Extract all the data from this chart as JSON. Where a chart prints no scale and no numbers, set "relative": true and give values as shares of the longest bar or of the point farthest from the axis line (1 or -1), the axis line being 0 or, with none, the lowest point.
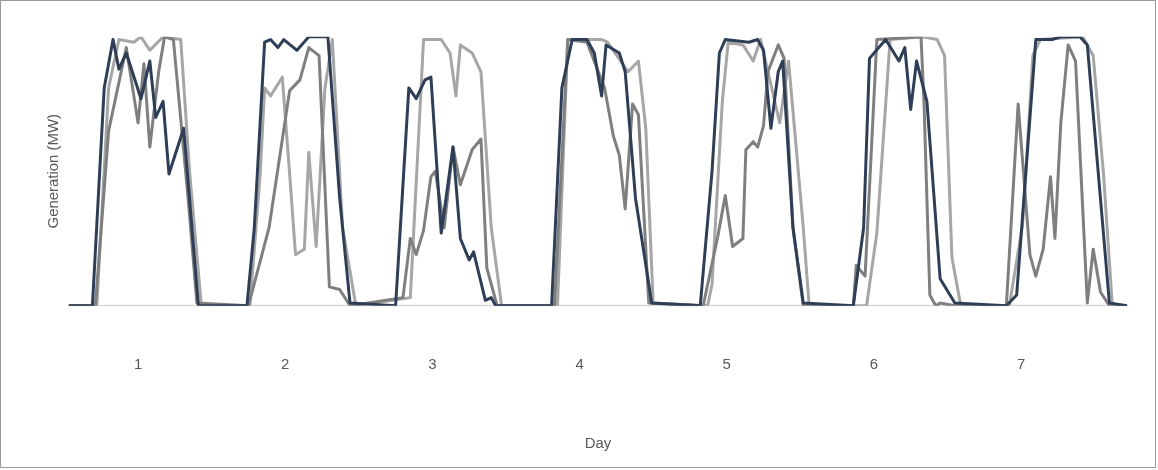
{
  "chart_data": {
    "type": "line",
    "xlabel": "Day",
    "ylabel": "Generation (MW)",
    "relative": true,
    "grid": false,
    "legend": false,
    "marker": "none",
    "line_style": "solid",
    "xlim": [
      0.03,
      7.22
    ],
    "xticks": [
      {
        "value": 0.5,
        "label": "1"
      },
      {
        "value": 1.5,
        "label": "2"
      },
      {
        "value": 2.5,
        "label": "3"
      },
      {
        "value": 3.5,
        "label": "4"
      },
      {
        "value": 4.5,
        "label": "5"
      },
      {
        "value": 5.5,
        "label": "6"
      },
      {
        "value": 6.5,
        "label": "7"
      }
    ],
    "series": [
      {
        "color": "#a6a6a6",
        "x": [
          0.03,
          0.22,
          0.3,
          0.37,
          0.47,
          0.52,
          0.58,
          0.67,
          0.79,
          0.85,
          0.93,
          1.26,
          1.33,
          1.36,
          1.4,
          1.48,
          1.53,
          1.57,
          1.63,
          1.66,
          1.71,
          1.77,
          1.82,
          1.89,
          1.98,
          2.35,
          2.44,
          2.56,
          2.62,
          2.66,
          2.69,
          2.77,
          2.83,
          2.9,
          2.97,
          3.35,
          3.42,
          3.65,
          3.69,
          3.83,
          3.9,
          3.95,
          4.0,
          4.37,
          4.4,
          4.47,
          4.51,
          4.61,
          4.68,
          4.73,
          4.86,
          4.92,
          5.02,
          5.06,
          5.45,
          5.52,
          5.61,
          5.83,
          5.93,
          5.98,
          6.03,
          6.09,
          6.42,
          6.51,
          6.58,
          6.63,
          6.92,
          6.99,
          7.06,
          7.12,
          7.22
        ],
        "values": [
          0,
          0,
          0.81,
          0.99,
          0.98,
          1,
          0.95,
          1,
          0.99,
          0.5,
          0,
          0,
          0.49,
          0.81,
          0.78,
          0.85,
          0.49,
          0.19,
          0.21,
          0.57,
          0.22,
          0.81,
          0.99,
          0.29,
          0,
          0.03,
          0.99,
          0.99,
          0.94,
          0.78,
          0.97,
          0.94,
          0.87,
          0.29,
          0,
          0,
          0.99,
          0.99,
          0.98,
          0.87,
          0.91,
          0.66,
          0.01,
          0,
          0.08,
          0.76,
          0.98,
          0.97,
          0.91,
          0.99,
          0.68,
          0.91,
          0.29,
          0,
          0,
          0.27,
          0.99,
          1,
          0.99,
          0.93,
          0.18,
          0,
          0,
          0.3,
          0.93,
          0.99,
          1,
          0.93,
          0.49,
          0,
          0
        ]
      },
      {
        "color": "#7f7f7f",
        "x": [
          0.03,
          0.21,
          0.3,
          0.42,
          0.5,
          0.54,
          0.58,
          0.64,
          0.68,
          0.74,
          0.84,
          0.9,
          1.25,
          1.39,
          1.53,
          1.6,
          1.66,
          1.73,
          1.8,
          1.87,
          1.94,
          2.3,
          2.35,
          2.39,
          2.44,
          2.49,
          2.52,
          2.58,
          2.64,
          2.69,
          2.77,
          2.83,
          2.87,
          2.94,
          3.33,
          3.42,
          3.55,
          3.67,
          3.73,
          3.77,
          3.81,
          3.86,
          3.9,
          3.97,
          4.34,
          4.44,
          4.49,
          4.54,
          4.61,
          4.63,
          4.68,
          4.71,
          4.75,
          4.78,
          4.85,
          4.89,
          4.95,
          5.02,
          5.36,
          5.38,
          5.44,
          5.52,
          5.82,
          5.84,
          5.88,
          5.92,
          5.95,
          6.05,
          6.4,
          6.48,
          6.56,
          6.6,
          6.65,
          6.7,
          6.73,
          6.77,
          6.82,
          6.87,
          6.95,
          6.99,
          7.04,
          7.1,
          7.22
        ],
        "values": [
          0,
          0,
          0.65,
          0.96,
          0.68,
          0.9,
          0.59,
          0.87,
          1,
          0.99,
          0.4,
          0.01,
          0,
          0.29,
          0.8,
          0.84,
          0.96,
          0.93,
          0.07,
          0.06,
          0,
          0.03,
          0.25,
          0.19,
          0.28,
          0.48,
          0.5,
          0.29,
          0.59,
          0.45,
          0.58,
          0.62,
          0.14,
          0,
          0,
          0.99,
          0.98,
          0.81,
          0.63,
          0.56,
          0.36,
          0.75,
          0.71,
          0.01,
          0,
          0.26,
          0.41,
          0.22,
          0.25,
          0.58,
          0.61,
          0.59,
          0.67,
          0.87,
          0.97,
          0.92,
          0.29,
          0,
          0,
          0.15,
          0.11,
          0.99,
          1,
          0.76,
          0.04,
          0,
          0.01,
          0,
          0,
          0.75,
          0.19,
          0.11,
          0.21,
          0.48,
          0.25,
          0.68,
          0.97,
          0.91,
          0.01,
          0.21,
          0.05,
          0,
          0
        ]
      },
      {
        "color": "#2e3e56",
        "x": [
          0.03,
          0.19,
          0.27,
          0.33,
          0.37,
          0.42,
          0.52,
          0.58,
          0.62,
          0.67,
          0.71,
          0.81,
          0.91,
          1.24,
          1.29,
          1.36,
          1.4,
          1.45,
          1.49,
          1.58,
          1.66,
          1.79,
          1.87,
          1.94,
          2.25,
          2.34,
          2.39,
          2.45,
          2.49,
          2.56,
          2.64,
          2.69,
          2.75,
          2.78,
          2.86,
          2.9,
          2.93,
          3.31,
          3.38,
          3.45,
          3.55,
          3.6,
          3.65,
          3.68,
          3.77,
          3.81,
          3.88,
          3.99,
          4.32,
          4.4,
          4.45,
          4.49,
          4.65,
          4.71,
          4.75,
          4.8,
          4.85,
          4.88,
          4.95,
          5.02,
          5.36,
          5.43,
          5.47,
          5.58,
          5.67,
          5.71,
          5.75,
          5.79,
          5.86,
          5.95,
          6.05,
          6.4,
          6.47,
          6.6,
          6.71,
          6.77,
          6.9,
          6.95,
          7.1,
          7.22
        ],
        "values": [
          0,
          0,
          0.81,
          0.99,
          0.88,
          0.94,
          0.77,
          0.91,
          0.7,
          0.76,
          0.49,
          0.66,
          0,
          0,
          0.29,
          0.98,
          0.99,
          0.96,
          0.99,
          0.95,
          1,
          1,
          0.4,
          0.01,
          0,
          0.81,
          0.77,
          0.84,
          0.85,
          0.27,
          0.59,
          0.25,
          0.17,
          0.2,
          0.02,
          0.03,
          0,
          0,
          0.81,
          0.99,
          0.99,
          0.94,
          0.78,
          0.97,
          0.94,
          0.87,
          0.4,
          0.01,
          0,
          0.5,
          0.94,
          0.99,
          0.98,
          0.99,
          0.95,
          0.66,
          0.87,
          0.91,
          0.29,
          0.01,
          0,
          0.29,
          0.92,
          0.99,
          0.91,
          0.96,
          0.73,
          0.91,
          0.76,
          0.1,
          0.01,
          0,
          0.04,
          0.99,
          0.99,
          1,
          1,
          0.97,
          0.01,
          0
        ]
      }
    ]
  }
}
